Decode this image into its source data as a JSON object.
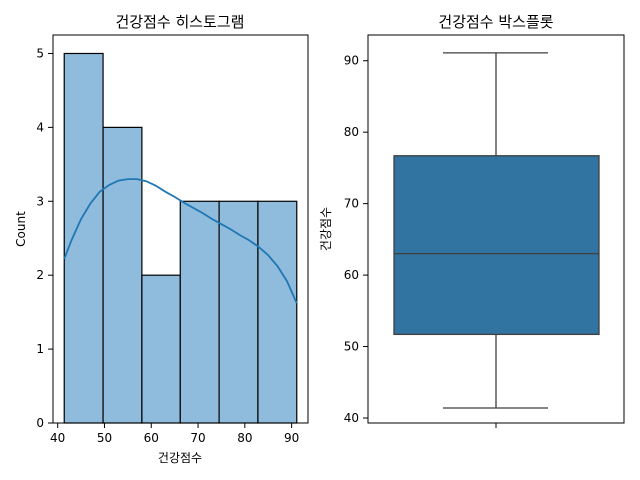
{
  "chart_data": [
    {
      "type": "bar",
      "subtype": "histogram-with-kde",
      "title": "건강점수 히스토그램",
      "xlabel": "건강점수",
      "ylabel": "Count",
      "bin_edges": [
        41.4,
        49.7,
        58.0,
        66.2,
        74.5,
        82.8,
        91.1
      ],
      "values": [
        5,
        4,
        2,
        3,
        3,
        3
      ],
      "xlim": [
        39.0,
        93.5
      ],
      "ylim": [
        0,
        5.25
      ],
      "xticks": [
        40,
        50,
        60,
        70,
        80,
        90
      ],
      "yticks": [
        0,
        1,
        2,
        3,
        4,
        5
      ],
      "kde": {
        "x": [
          41.4,
          43.0,
          45.0,
          47.0,
          49.0,
          51.0,
          53.0,
          55.0,
          57.0,
          59.0,
          61.0,
          63.0,
          65.0,
          67.0,
          69.0,
          71.0,
          73.0,
          75.0,
          77.0,
          79.0,
          81.0,
          83.0,
          85.0,
          87.0,
          89.0,
          91.1
        ],
        "y": [
          2.22,
          2.48,
          2.76,
          2.97,
          3.13,
          3.22,
          3.28,
          3.3,
          3.3,
          3.27,
          3.21,
          3.13,
          3.06,
          2.98,
          2.91,
          2.84,
          2.76,
          2.69,
          2.62,
          2.54,
          2.47,
          2.38,
          2.27,
          2.12,
          1.92,
          1.62
        ]
      },
      "colors": {
        "bar": "#8fbbdc",
        "edge": "#000000",
        "kde": "#1f77b4"
      }
    },
    {
      "type": "box",
      "title": "건강점수 박스플롯",
      "xlabel": "",
      "ylabel": "건강점수",
      "whisker_low": 41.4,
      "q1": 51.7,
      "median": 63.0,
      "q3": 76.7,
      "whisker_high": 91.1,
      "ylim": [
        39.3,
        93.6
      ],
      "yticks": [
        40,
        50,
        60,
        70,
        80,
        90
      ],
      "colors": {
        "box": "#3274a1",
        "line": "#3f3f3f"
      }
    }
  ]
}
